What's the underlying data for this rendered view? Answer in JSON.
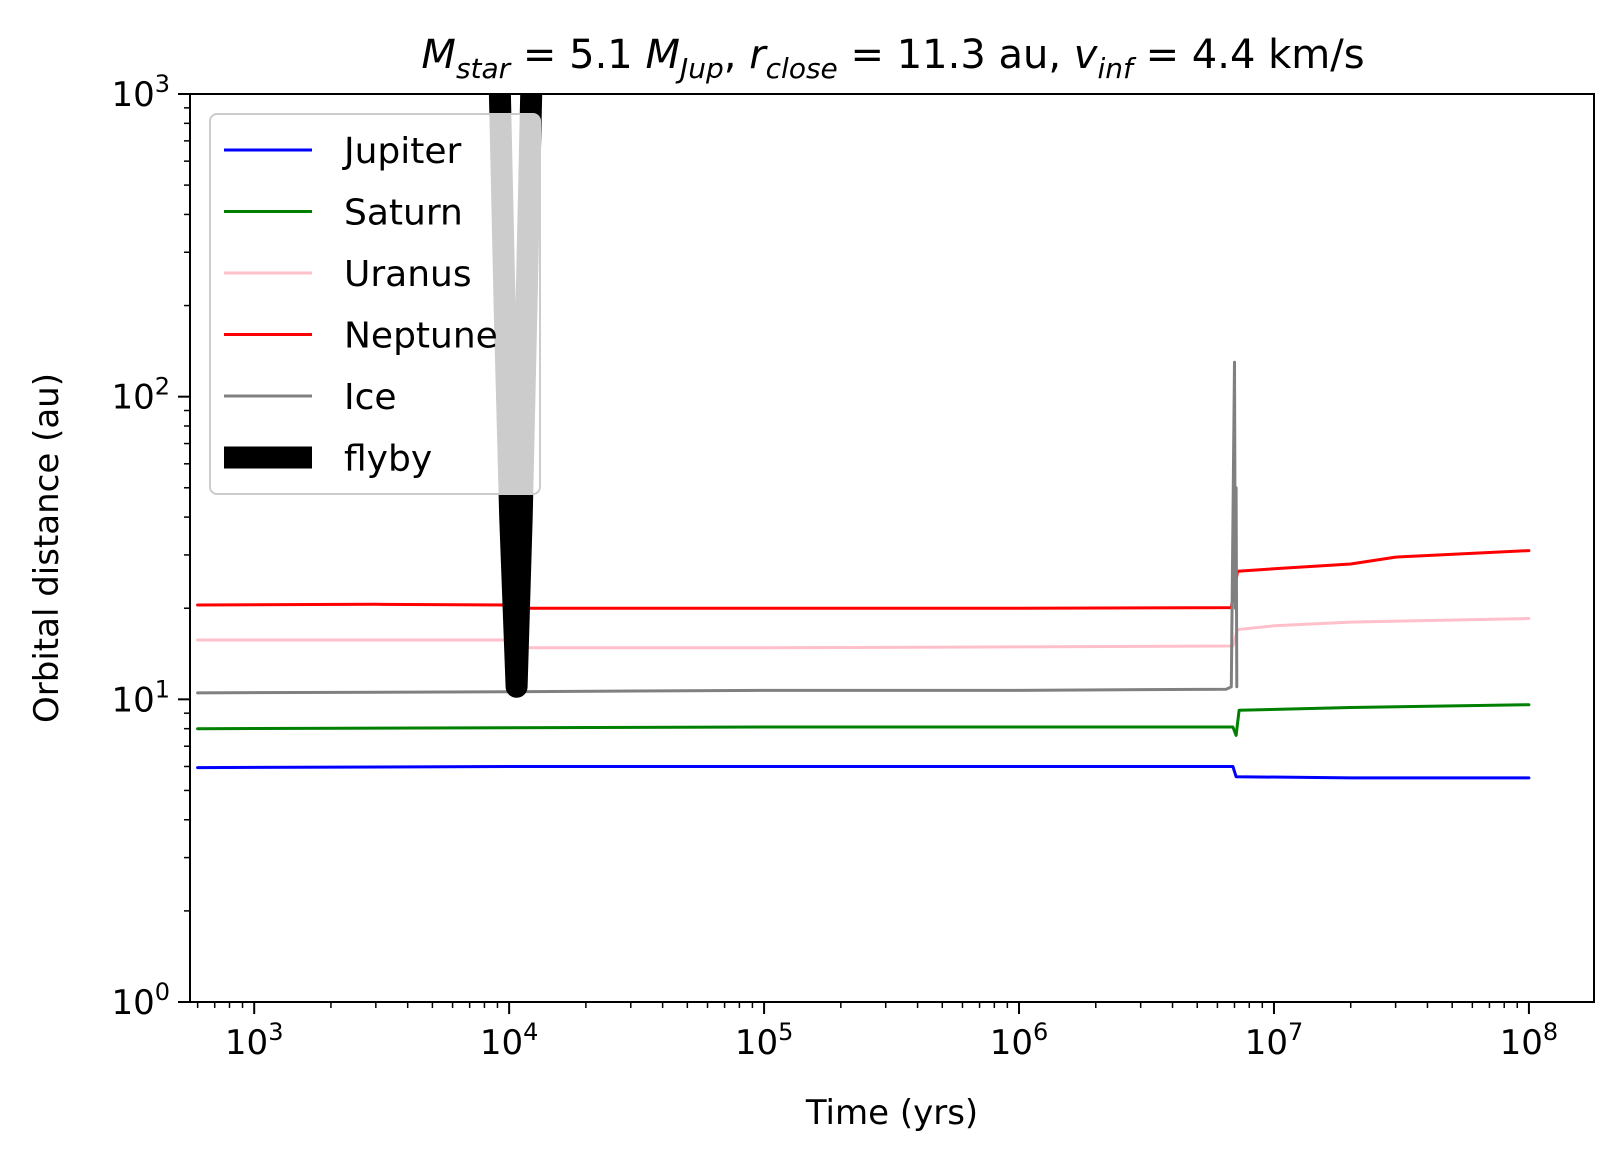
{
  "chart_data": {
    "type": "line",
    "title": {
      "m_sym": "M",
      "m_sub": "star",
      "m_val": " = 5.1 ",
      "mj_sym": "M",
      "mj_sub": "Jup",
      "sep1": ", ",
      "r_sym": "r",
      "r_sub": "close",
      "r_val": " = 11.3 au, ",
      "v_sym": "v",
      "v_sub": "inf",
      "v_val": " = 4.4 km/s"
    },
    "xlabel": "Time (yrs)",
    "ylabel": "Orbital distance (au)",
    "xscale": "log",
    "yscale": "log",
    "xlim": [
      560,
      180000000
    ],
    "ylim": [
      1,
      1000
    ],
    "x_ticks": [
      {
        "value": 1000,
        "base": "10",
        "exp": "3"
      },
      {
        "value": 10000,
        "base": "10",
        "exp": "4"
      },
      {
        "value": 100000,
        "base": "10",
        "exp": "5"
      },
      {
        "value": 1000000,
        "base": "10",
        "exp": "6"
      },
      {
        "value": 10000000,
        "base": "10",
        "exp": "7"
      },
      {
        "value": 100000000,
        "base": "10",
        "exp": "8"
      }
    ],
    "y_ticks": [
      {
        "value": 1,
        "base": "10",
        "exp": "0"
      },
      {
        "value": 10,
        "base": "10",
        "exp": "1"
      },
      {
        "value": 100,
        "base": "10",
        "exp": "2"
      },
      {
        "value": 1000,
        "base": "10",
        "exp": "3"
      }
    ],
    "legend_position": "upper-left",
    "series": [
      {
        "name": "Jupiter",
        "color": "#0000ff",
        "x": [
          600,
          10000,
          100000,
          1000000,
          6900000,
          7100000,
          20000000,
          100000000
        ],
        "y": [
          5.95,
          6.0,
          6.0,
          6.0,
          6.0,
          5.55,
          5.5,
          5.5
        ]
      },
      {
        "name": "Saturn",
        "color": "#008000",
        "x": [
          600,
          10000,
          100000,
          1000000,
          6900000,
          7100000,
          7300000,
          20000000,
          100000000
        ],
        "y": [
          8.0,
          8.05,
          8.1,
          8.1,
          8.1,
          7.6,
          9.2,
          9.4,
          9.6
        ]
      },
      {
        "name": "Uranus",
        "color": "#ffc0cb",
        "x": [
          600,
          10000,
          11000,
          100000,
          1000000,
          6900000,
          7200000,
          10000000,
          20000000,
          100000000
        ],
        "y": [
          15.7,
          15.7,
          14.8,
          14.8,
          14.9,
          15.0,
          17.0,
          17.5,
          18.0,
          18.5
        ]
      },
      {
        "name": "Neptune",
        "color": "#ff0000",
        "x": [
          600,
          3000,
          10000,
          11000,
          100000,
          1000000,
          6800000,
          7200000,
          10000000,
          20000000,
          30000000,
          100000000
        ],
        "y": [
          20.5,
          20.6,
          20.5,
          20.0,
          20.0,
          20.0,
          20.1,
          26.5,
          27.0,
          28.0,
          29.5,
          31.0
        ]
      },
      {
        "name": "Ice",
        "color": "#808080",
        "x": [
          600,
          10000,
          100000,
          1000000,
          6500000,
          6800000,
          7000000,
          7050000,
          7100000,
          7150000
        ],
        "y": [
          10.5,
          10.6,
          10.7,
          10.7,
          10.8,
          11.0,
          130,
          20,
          50,
          11
        ]
      },
      {
        "name": "flyby",
        "color": "#000000",
        "x": [
          9200,
          9600,
          10100,
          10700,
          11200,
          11700,
          12200
        ],
        "y": [
          1000,
          200,
          40,
          11.0,
          40,
          200,
          1000
        ]
      }
    ]
  }
}
